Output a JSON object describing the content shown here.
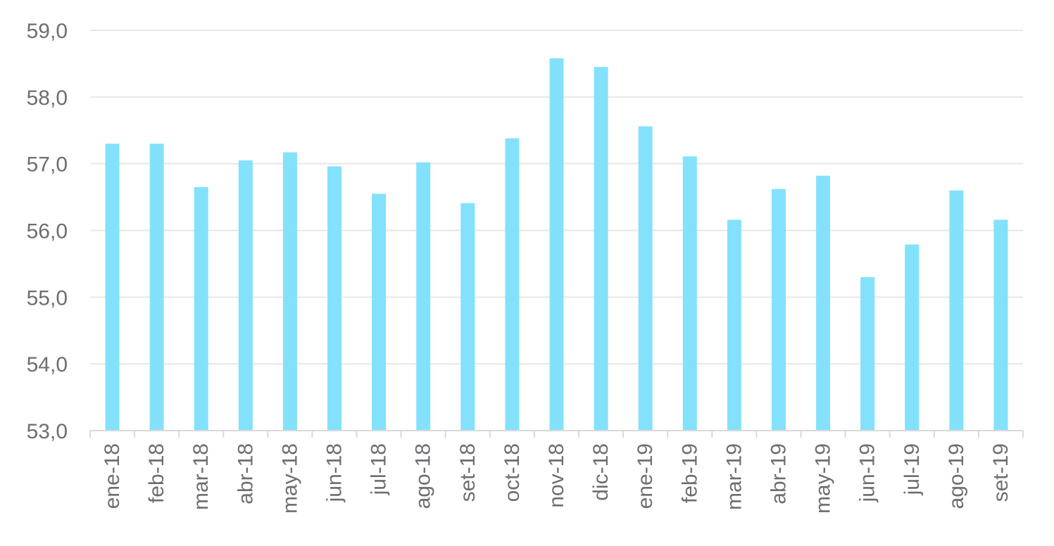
{
  "chart_data": {
    "type": "bar",
    "title": "",
    "xlabel": "",
    "ylabel": "",
    "ylim": [
      53.0,
      59.0
    ],
    "yticks": [
      "53,0",
      "54,0",
      "55,0",
      "56,0",
      "57,0",
      "58,0",
      "59,0"
    ],
    "grid": true,
    "bar_color": "#84e1fb",
    "categories": [
      "ene-18",
      "feb-18",
      "mar-18",
      "abr-18",
      "may-18",
      "jun-18",
      "jul-18",
      "ago-18",
      "set-18",
      "oct-18",
      "nov-18",
      "dic-18",
      "ene-19",
      "feb-19",
      "mar-19",
      "abr-19",
      "may-19",
      "jun-19",
      "jul-19",
      "ago-19",
      "set-19"
    ],
    "values": [
      57.3,
      57.3,
      56.65,
      57.05,
      57.17,
      56.96,
      56.55,
      57.02,
      56.41,
      57.38,
      58.58,
      58.45,
      57.56,
      57.11,
      56.16,
      56.62,
      56.82,
      55.3,
      55.79,
      56.6,
      56.16
    ]
  }
}
